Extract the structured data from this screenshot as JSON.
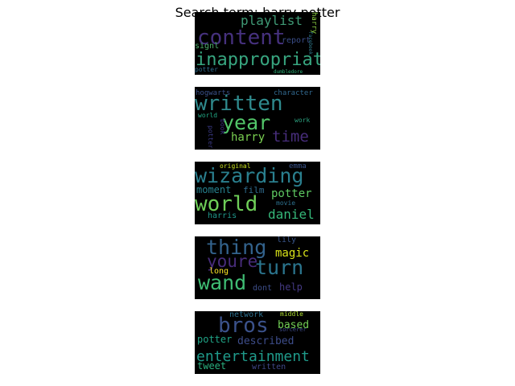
{
  "chart_data": {
    "type": "wordcloud",
    "title": "Search term: harry potter",
    "clouds": [
      {
        "words": [
          {
            "text": "playlist",
            "weight": 0.62,
            "color": "#3f9a76",
            "orientation": "horizontal"
          },
          {
            "text": "content",
            "weight": 1.0,
            "color": "#46317e",
            "orientation": "horizontal"
          },
          {
            "text": "signl",
            "weight": 0.4,
            "color": "#4cae6b",
            "orientation": "horizontal"
          },
          {
            "text": "report",
            "weight": 0.38,
            "color": "#3b4e8a",
            "orientation": "horizontal"
          },
          {
            "text": "harry",
            "weight": 0.34,
            "color": "#8fd644",
            "orientation": "vertical"
          },
          {
            "text": "facebook",
            "weight": 0.16,
            "color": "#2f7c8e",
            "orientation": "vertical"
          },
          {
            "text": "inappropriate",
            "weight": 0.84,
            "color": "#37a57f",
            "orientation": "horizontal"
          },
          {
            "text": "potter",
            "weight": 0.3,
            "color": "#2e6c8e",
            "orientation": "horizontal"
          },
          {
            "text": "dumbledore",
            "weight": 0.14,
            "color": "#2fb47c",
            "orientation": "horizontal"
          }
        ]
      },
      {
        "words": [
          {
            "text": "hogwarts",
            "weight": 0.36,
            "color": "#3b528b",
            "orientation": "horizontal"
          },
          {
            "text": "character",
            "weight": 0.36,
            "color": "#31688e",
            "orientation": "horizontal"
          },
          {
            "text": "written",
            "weight": 1.0,
            "color": "#2f8a8d",
            "orientation": "horizontal"
          },
          {
            "text": "year",
            "weight": 0.95,
            "color": "#52c569",
            "orientation": "horizontal"
          },
          {
            "text": "book",
            "weight": 0.3,
            "color": "#3e2f82",
            "orientation": "vertical"
          },
          {
            "text": "world",
            "weight": 0.3,
            "color": "#22a884",
            "orientation": "horizontal"
          },
          {
            "text": "work",
            "weight": 0.3,
            "color": "#2ca07f",
            "orientation": "horizontal"
          },
          {
            "text": "potter",
            "weight": 0.3,
            "color": "#3b3a86",
            "orientation": "vertical"
          },
          {
            "text": "harry",
            "weight": 0.55,
            "color": "#7ad151",
            "orientation": "horizontal"
          },
          {
            "text": "time",
            "weight": 0.72,
            "color": "#472d7b",
            "orientation": "horizontal"
          }
        ]
      },
      {
        "words": [
          {
            "text": "original",
            "weight": 0.3,
            "color": "#c8e020",
            "orientation": "horizontal"
          },
          {
            "text": "emma",
            "weight": 0.36,
            "color": "#3a548c",
            "orientation": "horizontal"
          },
          {
            "text": "wizarding",
            "weight": 0.95,
            "color": "#2a7f8e",
            "orientation": "horizontal"
          },
          {
            "text": "moment",
            "weight": 0.48,
            "color": "#26818e",
            "orientation": "horizontal"
          },
          {
            "text": "film",
            "weight": 0.42,
            "color": "#2f6b8e",
            "orientation": "horizontal"
          },
          {
            "text": "potter",
            "weight": 0.52,
            "color": "#5ec962",
            "orientation": "horizontal"
          },
          {
            "text": "world",
            "weight": 1.0,
            "color": "#6ece58",
            "orientation": "horizontal"
          },
          {
            "text": "movie",
            "weight": 0.3,
            "color": "#2d718e",
            "orientation": "horizontal"
          },
          {
            "text": "harris",
            "weight": 0.38,
            "color": "#1f978b",
            "orientation": "horizontal"
          },
          {
            "text": "daniel",
            "weight": 0.6,
            "color": "#35b779",
            "orientation": "horizontal"
          }
        ]
      },
      {
        "words": [
          {
            "text": "thing",
            "weight": 0.95,
            "color": "#33638d",
            "orientation": "horizontal"
          },
          {
            "text": "lily",
            "weight": 0.4,
            "color": "#39568c",
            "orientation": "horizontal"
          },
          {
            "text": "youre",
            "weight": 0.8,
            "color": "#472c7a",
            "orientation": "horizontal"
          },
          {
            "text": "magic",
            "weight": 0.55,
            "color": "#d8e219",
            "orientation": "horizontal"
          },
          {
            "text": "turn",
            "weight": 0.95,
            "color": "#2b758e",
            "orientation": "horizontal"
          },
          {
            "text": "long",
            "weight": 0.4,
            "color": "#fde725",
            "orientation": "horizontal"
          },
          {
            "text": "wand",
            "weight": 0.95,
            "color": "#3fbc73",
            "orientation": "horizontal"
          },
          {
            "text": "dont",
            "weight": 0.4,
            "color": "#3d4e8a",
            "orientation": "horizontal"
          },
          {
            "text": "help",
            "weight": 0.45,
            "color": "#443983",
            "orientation": "horizontal"
          }
        ]
      },
      {
        "words": [
          {
            "text": "network",
            "weight": 0.38,
            "color": "#2d708e",
            "orientation": "horizontal"
          },
          {
            "text": "middle",
            "weight": 0.3,
            "color": "#addc30",
            "orientation": "horizontal"
          },
          {
            "text": "bros",
            "weight": 1.0,
            "color": "#3b528b",
            "orientation": "horizontal"
          },
          {
            "text": "based",
            "weight": 0.5,
            "color": "#73d056",
            "orientation": "horizontal"
          },
          {
            "text": "sorcerer",
            "weight": 0.28,
            "color": "#3e4a89",
            "orientation": "horizontal"
          },
          {
            "text": "potter",
            "weight": 0.45,
            "color": "#20a386",
            "orientation": "horizontal"
          },
          {
            "text": "described",
            "weight": 0.5,
            "color": "#3d4d8a",
            "orientation": "horizontal"
          },
          {
            "text": "entertainment",
            "weight": 0.7,
            "color": "#1f9a8a",
            "orientation": "horizontal"
          },
          {
            "text": "tweet",
            "weight": 0.45,
            "color": "#29af7f",
            "orientation": "horizontal"
          },
          {
            "text": "written",
            "weight": 0.4,
            "color": "#3f4788",
            "orientation": "horizontal"
          }
        ]
      }
    ]
  }
}
